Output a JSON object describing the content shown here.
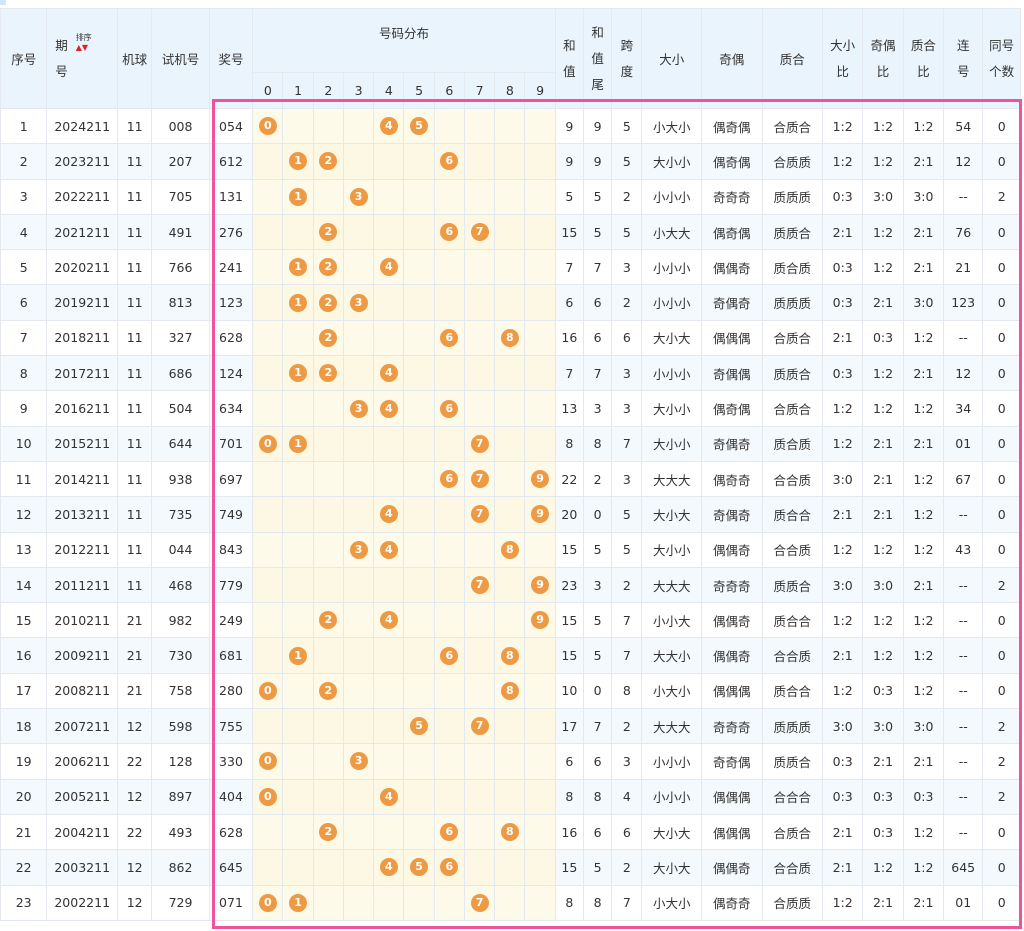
{
  "header": {
    "idx": "序号",
    "issue_top": "期",
    "issue_bottom": "号",
    "sort_label": "排序",
    "machine": "机球",
    "trial": "试机号",
    "prize": "奖号",
    "dist": "号码分布",
    "digits": [
      "0",
      "1",
      "2",
      "3",
      "4",
      "5",
      "6",
      "7",
      "8",
      "9"
    ],
    "sum": "和值",
    "sumtail": "和值尾",
    "span": "跨度",
    "bigsmall": "大小",
    "oddeven": "奇偶",
    "prime": "质合",
    "bs_ratio": "大小比",
    "oe_ratio": "奇偶比",
    "pc_ratio": "质合比",
    "consec": "连号",
    "same": "同号个数"
  },
  "rows": [
    {
      "idx": "1",
      "issue": "2024211",
      "machine": "11",
      "trial": "008",
      "prize": "054",
      "dist": [
        0,
        4,
        5
      ],
      "sum": "9",
      "tail": "9",
      "span": "5",
      "bs": "小大小",
      "oe": "偶奇偶",
      "pc": "合质合",
      "r1": "1:2",
      "r2": "1:2",
      "r3": "1:2",
      "consec": "54",
      "same": "0"
    },
    {
      "idx": "2",
      "issue": "2023211",
      "machine": "11",
      "trial": "207",
      "prize": "612",
      "dist": [
        1,
        2,
        6
      ],
      "sum": "9",
      "tail": "9",
      "span": "5",
      "bs": "大小小",
      "oe": "偶奇偶",
      "pc": "合质质",
      "r1": "1:2",
      "r2": "1:2",
      "r3": "2:1",
      "consec": "12",
      "same": "0"
    },
    {
      "idx": "3",
      "issue": "2022211",
      "machine": "11",
      "trial": "705",
      "prize": "131",
      "dist": [
        1,
        3
      ],
      "sum": "5",
      "tail": "5",
      "span": "2",
      "bs": "小小小",
      "oe": "奇奇奇",
      "pc": "质质质",
      "r1": "0:3",
      "r2": "3:0",
      "r3": "3:0",
      "consec": "--",
      "same": "2"
    },
    {
      "idx": "4",
      "issue": "2021211",
      "machine": "11",
      "trial": "491",
      "prize": "276",
      "dist": [
        2,
        6,
        7
      ],
      "sum": "15",
      "tail": "5",
      "span": "5",
      "bs": "小大大",
      "oe": "偶奇偶",
      "pc": "质质合",
      "r1": "2:1",
      "r2": "1:2",
      "r3": "2:1",
      "consec": "76",
      "same": "0"
    },
    {
      "idx": "5",
      "issue": "2020211",
      "machine": "11",
      "trial": "766",
      "prize": "241",
      "dist": [
        1,
        2,
        4
      ],
      "sum": "7",
      "tail": "7",
      "span": "3",
      "bs": "小小小",
      "oe": "偶偶奇",
      "pc": "质合质",
      "r1": "0:3",
      "r2": "1:2",
      "r3": "2:1",
      "consec": "21",
      "same": "0"
    },
    {
      "idx": "6",
      "issue": "2019211",
      "machine": "11",
      "trial": "813",
      "prize": "123",
      "dist": [
        1,
        2,
        3
      ],
      "sum": "6",
      "tail": "6",
      "span": "2",
      "bs": "小小小",
      "oe": "奇偶奇",
      "pc": "质质质",
      "r1": "0:3",
      "r2": "2:1",
      "r3": "3:0",
      "consec": "123",
      "same": "0"
    },
    {
      "idx": "7",
      "issue": "2018211",
      "machine": "11",
      "trial": "327",
      "prize": "628",
      "dist": [
        2,
        6,
        8
      ],
      "sum": "16",
      "tail": "6",
      "span": "6",
      "bs": "大小大",
      "oe": "偶偶偶",
      "pc": "合质合",
      "r1": "2:1",
      "r2": "0:3",
      "r3": "1:2",
      "consec": "--",
      "same": "0"
    },
    {
      "idx": "8",
      "issue": "2017211",
      "machine": "11",
      "trial": "686",
      "prize": "124",
      "dist": [
        1,
        2,
        4
      ],
      "sum": "7",
      "tail": "7",
      "span": "3",
      "bs": "小小小",
      "oe": "奇偶偶",
      "pc": "质质合",
      "r1": "0:3",
      "r2": "1:2",
      "r3": "2:1",
      "consec": "12",
      "same": "0"
    },
    {
      "idx": "9",
      "issue": "2016211",
      "machine": "11",
      "trial": "504",
      "prize": "634",
      "dist": [
        3,
        4,
        6
      ],
      "sum": "13",
      "tail": "3",
      "span": "3",
      "bs": "大小小",
      "oe": "偶奇偶",
      "pc": "合质合",
      "r1": "1:2",
      "r2": "1:2",
      "r3": "1:2",
      "consec": "34",
      "same": "0"
    },
    {
      "idx": "10",
      "issue": "2015211",
      "machine": "11",
      "trial": "644",
      "prize": "701",
      "dist": [
        0,
        1,
        7
      ],
      "sum": "8",
      "tail": "8",
      "span": "7",
      "bs": "大小小",
      "oe": "奇偶奇",
      "pc": "质合质",
      "r1": "1:2",
      "r2": "2:1",
      "r3": "2:1",
      "consec": "01",
      "same": "0"
    },
    {
      "idx": "11",
      "issue": "2014211",
      "machine": "11",
      "trial": "938",
      "prize": "697",
      "dist": [
        6,
        7,
        9
      ],
      "sum": "22",
      "tail": "2",
      "span": "3",
      "bs": "大大大",
      "oe": "偶奇奇",
      "pc": "合合质",
      "r1": "3:0",
      "r2": "2:1",
      "r3": "1:2",
      "consec": "67",
      "same": "0"
    },
    {
      "idx": "12",
      "issue": "2013211",
      "machine": "11",
      "trial": "735",
      "prize": "749",
      "dist": [
        4,
        7,
        9
      ],
      "sum": "20",
      "tail": "0",
      "span": "5",
      "bs": "大小大",
      "oe": "奇偶奇",
      "pc": "质合合",
      "r1": "2:1",
      "r2": "2:1",
      "r3": "1:2",
      "consec": "--",
      "same": "0"
    },
    {
      "idx": "13",
      "issue": "2012211",
      "machine": "11",
      "trial": "044",
      "prize": "843",
      "dist": [
        3,
        4,
        8
      ],
      "sum": "15",
      "tail": "5",
      "span": "5",
      "bs": "大小小",
      "oe": "偶偶奇",
      "pc": "合合质",
      "r1": "1:2",
      "r2": "1:2",
      "r3": "1:2",
      "consec": "43",
      "same": "0"
    },
    {
      "idx": "14",
      "issue": "2011211",
      "machine": "11",
      "trial": "468",
      "prize": "779",
      "dist": [
        7,
        9
      ],
      "sum": "23",
      "tail": "3",
      "span": "2",
      "bs": "大大大",
      "oe": "奇奇奇",
      "pc": "质质合",
      "r1": "3:0",
      "r2": "3:0",
      "r3": "2:1",
      "consec": "--",
      "same": "2"
    },
    {
      "idx": "15",
      "issue": "2010211",
      "machine": "21",
      "trial": "982",
      "prize": "249",
      "dist": [
        2,
        4,
        9
      ],
      "sum": "15",
      "tail": "5",
      "span": "7",
      "bs": "小小大",
      "oe": "偶偶奇",
      "pc": "质合合",
      "r1": "1:2",
      "r2": "1:2",
      "r3": "1:2",
      "consec": "--",
      "same": "0"
    },
    {
      "idx": "16",
      "issue": "2009211",
      "machine": "21",
      "trial": "730",
      "prize": "681",
      "dist": [
        1,
        6,
        8
      ],
      "sum": "15",
      "tail": "5",
      "span": "7",
      "bs": "大大小",
      "oe": "偶偶奇",
      "pc": "合合质",
      "r1": "2:1",
      "r2": "1:2",
      "r3": "1:2",
      "consec": "--",
      "same": "0"
    },
    {
      "idx": "17",
      "issue": "2008211",
      "machine": "21",
      "trial": "758",
      "prize": "280",
      "dist": [
        0,
        2,
        8
      ],
      "sum": "10",
      "tail": "0",
      "span": "8",
      "bs": "小大小",
      "oe": "偶偶偶",
      "pc": "质合合",
      "r1": "1:2",
      "r2": "0:3",
      "r3": "1:2",
      "consec": "--",
      "same": "0"
    },
    {
      "idx": "18",
      "issue": "2007211",
      "machine": "12",
      "trial": "598",
      "prize": "755",
      "dist": [
        5,
        7
      ],
      "sum": "17",
      "tail": "7",
      "span": "2",
      "bs": "大大大",
      "oe": "奇奇奇",
      "pc": "质质质",
      "r1": "3:0",
      "r2": "3:0",
      "r3": "3:0",
      "consec": "--",
      "same": "2"
    },
    {
      "idx": "19",
      "issue": "2006211",
      "machine": "22",
      "trial": "128",
      "prize": "330",
      "dist": [
        0,
        3
      ],
      "sum": "6",
      "tail": "6",
      "span": "3",
      "bs": "小小小",
      "oe": "奇奇偶",
      "pc": "质质合",
      "r1": "0:3",
      "r2": "2:1",
      "r3": "2:1",
      "consec": "--",
      "same": "2"
    },
    {
      "idx": "20",
      "issue": "2005211",
      "machine": "12",
      "trial": "897",
      "prize": "404",
      "dist": [
        0,
        4
      ],
      "sum": "8",
      "tail": "8",
      "span": "4",
      "bs": "小小小",
      "oe": "偶偶偶",
      "pc": "合合合",
      "r1": "0:3",
      "r2": "0:3",
      "r3": "0:3",
      "consec": "--",
      "same": "2"
    },
    {
      "idx": "21",
      "issue": "2004211",
      "machine": "22",
      "trial": "493",
      "prize": "628",
      "dist": [
        2,
        6,
        8
      ],
      "sum": "16",
      "tail": "6",
      "span": "6",
      "bs": "大小大",
      "oe": "偶偶偶",
      "pc": "合质合",
      "r1": "2:1",
      "r2": "0:3",
      "r3": "1:2",
      "consec": "--",
      "same": "0"
    },
    {
      "idx": "22",
      "issue": "2003211",
      "machine": "12",
      "trial": "862",
      "prize": "645",
      "dist": [
        4,
        5,
        6
      ],
      "sum": "15",
      "tail": "5",
      "span": "2",
      "bs": "大小大",
      "oe": "偶偶奇",
      "pc": "合合质",
      "r1": "2:1",
      "r2": "1:2",
      "r3": "1:2",
      "consec": "645",
      "same": "0"
    },
    {
      "idx": "23",
      "issue": "2002211",
      "machine": "12",
      "trial": "729",
      "prize": "071",
      "dist": [
        0,
        1,
        7
      ],
      "sum": "8",
      "tail": "8",
      "span": "7",
      "bs": "小大小",
      "oe": "偶奇奇",
      "pc": "合质质",
      "r1": "1:2",
      "r2": "2:1",
      "r3": "2:1",
      "consec": "01",
      "same": "0"
    }
  ],
  "colors": {
    "ball": "#ee9a45",
    "header_bg": "#e9f4fd",
    "dist_bg": "#fdfae9",
    "frame": "#f0529d"
  }
}
